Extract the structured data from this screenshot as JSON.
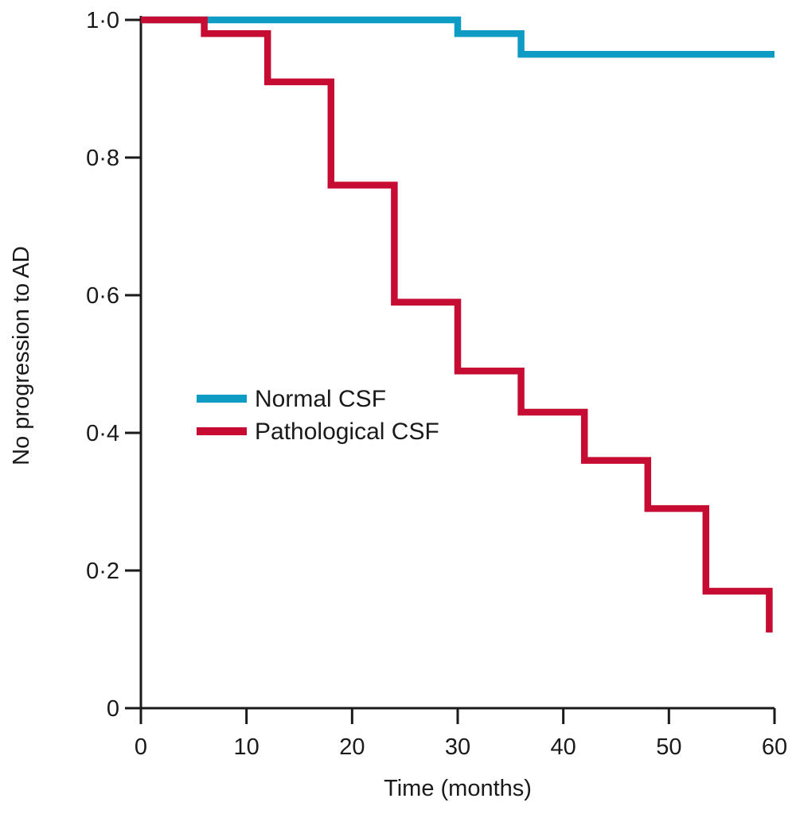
{
  "chart_data": {
    "type": "line",
    "subtype": "kaplan-meier-step",
    "title": "",
    "xlabel": "Time (months)",
    "ylabel": "No progression to AD",
    "xlim": [
      0,
      60
    ],
    "ylim": [
      0,
      1.0
    ],
    "x_ticks": [
      0,
      10,
      20,
      30,
      40,
      50,
      60
    ],
    "y_ticks": [
      {
        "value": 1.0,
        "label": "1·0"
      },
      {
        "value": 0.8,
        "label": "0·8"
      },
      {
        "value": 0.6,
        "label": "0·6"
      },
      {
        "value": 0.4,
        "label": "0·4"
      },
      {
        "value": 0.2,
        "label": "0·2"
      },
      {
        "value": 0.0,
        "label": "0"
      }
    ],
    "grid": false,
    "legend_position": "inside-left-middle",
    "series": [
      {
        "name": "Normal CSF",
        "color": "#0F9CC4",
        "start": {
          "t": 0,
          "s": 1.0
        },
        "end_t": 60,
        "drops": [
          {
            "t": 30,
            "s": 0.98
          },
          {
            "t": 36,
            "s": 0.95
          }
        ]
      },
      {
        "name": "Pathological CSF",
        "color": "#C60C33",
        "start": {
          "t": 0,
          "s": 1.0
        },
        "end_t": 59.5,
        "drops": [
          {
            "t": 6,
            "s": 0.98
          },
          {
            "t": 12,
            "s": 0.91
          },
          {
            "t": 18,
            "s": 0.76
          },
          {
            "t": 24,
            "s": 0.59
          },
          {
            "t": 30,
            "s": 0.49
          },
          {
            "t": 36,
            "s": 0.43
          },
          {
            "t": 42,
            "s": 0.36
          },
          {
            "t": 48,
            "s": 0.29
          },
          {
            "t": 53.5,
            "s": 0.17
          },
          {
            "t": 59.5,
            "s": 0.11
          }
        ]
      }
    ]
  },
  "colors": {
    "axis": "#1A1A1A",
    "text": "#1A1A1A",
    "background": "#FFFFFF"
  }
}
